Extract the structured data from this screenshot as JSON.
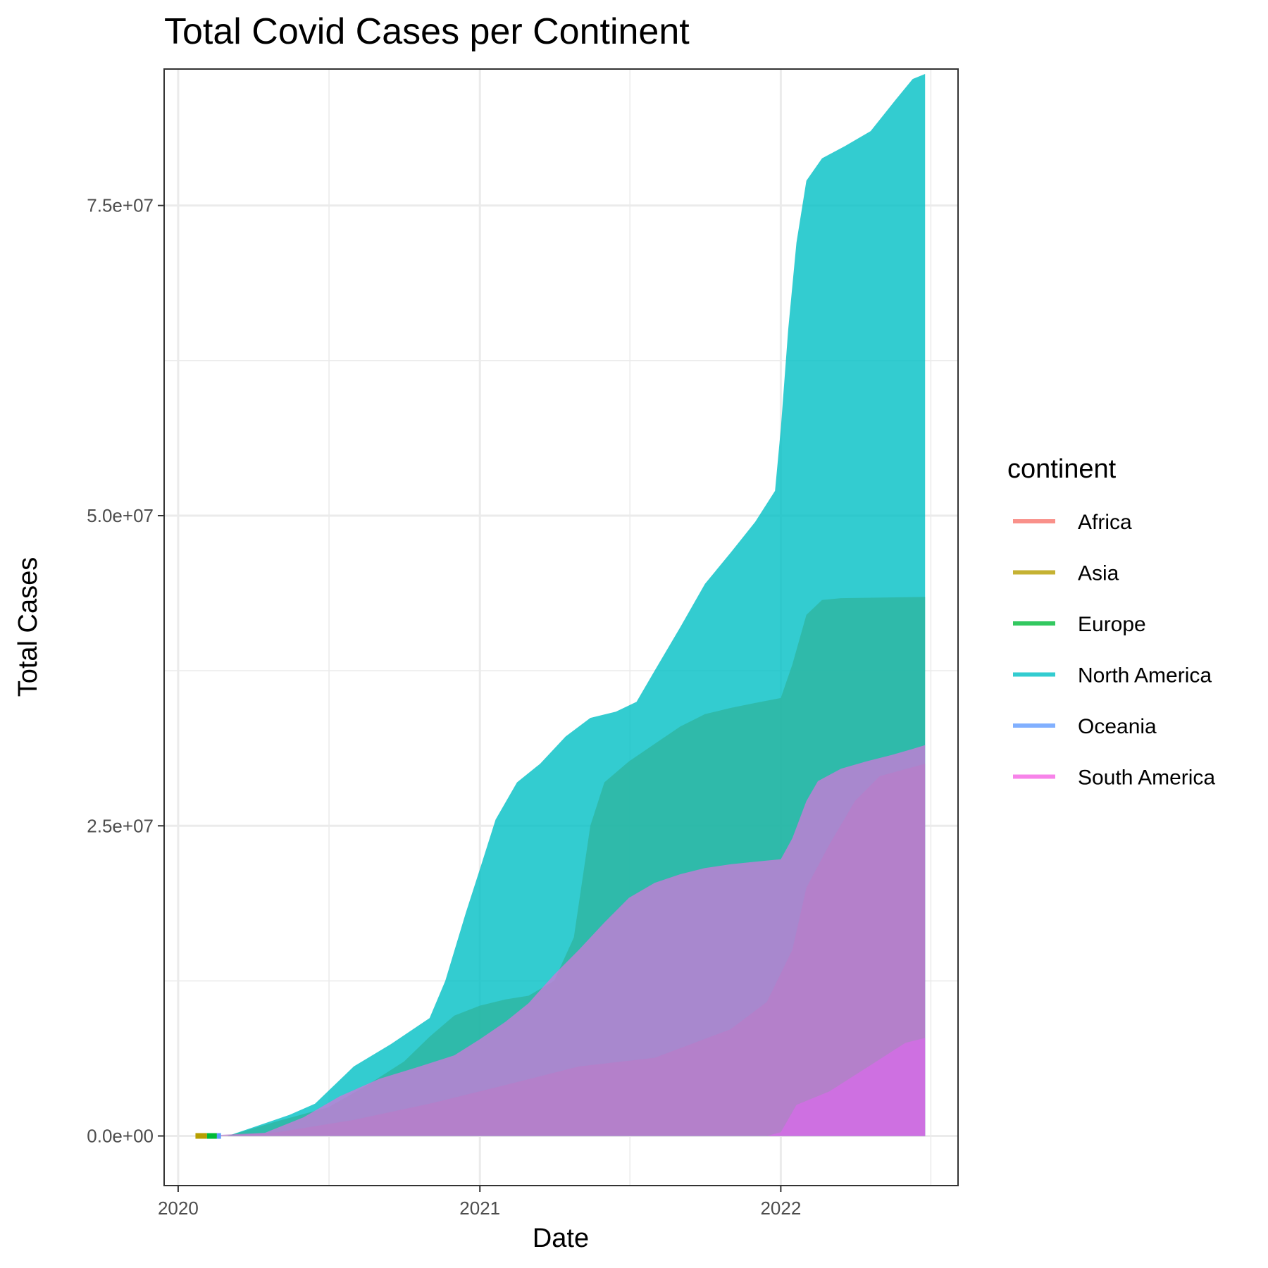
{
  "chart_data": {
    "type": "area",
    "title": "Total Covid Cases per Continent",
    "xlabel": "Date",
    "ylabel": "Total Cases",
    "xlim": [
      "2019-12-15",
      "2022-08-04"
    ],
    "ylim": [
      -4000000,
      86000000
    ],
    "x_ticks": [
      {
        "date": "2020-01-01",
        "label": "2020"
      },
      {
        "date": "2021-01-01",
        "label": "2021"
      },
      {
        "date": "2022-01-01",
        "label": "2022"
      }
    ],
    "x_minor_ticks": [
      "2020-07-02",
      "2021-07-02",
      "2022-07-02"
    ],
    "y_ticks": [
      {
        "value": 0,
        "label": "0.0e+00"
      },
      {
        "value": 25000000,
        "label": "2.5e+07"
      },
      {
        "value": 50000000,
        "label": "5.0e+07"
      },
      {
        "value": 75000000,
        "label": "7.5e+07"
      }
    ],
    "y_minor_ticks": [
      12500000,
      37500000,
      62500000
    ],
    "grid": true,
    "legend": {
      "title": "continent",
      "position": "right"
    },
    "series": [
      {
        "name": "North America",
        "color": "#00BFC4",
        "points": [
          [
            "2020-03-01",
            0
          ],
          [
            "2020-04-01",
            700000
          ],
          [
            "2020-05-15",
            1700000
          ],
          [
            "2020-06-15",
            2600000
          ],
          [
            "2020-08-01",
            5600000
          ],
          [
            "2020-09-15",
            7400000
          ],
          [
            "2020-11-01",
            9500000
          ],
          [
            "2020-11-20",
            12500000
          ],
          [
            "2020-12-15",
            18000000
          ],
          [
            "2021-01-01",
            21500000
          ],
          [
            "2021-01-20",
            25500000
          ],
          [
            "2021-02-15",
            28500000
          ],
          [
            "2021-03-15",
            30000000
          ],
          [
            "2021-04-15",
            32200000
          ],
          [
            "2021-05-15",
            33700000
          ],
          [
            "2021-06-15",
            34200000
          ],
          [
            "2021-07-10",
            35000000
          ],
          [
            "2021-08-01",
            37500000
          ],
          [
            "2021-09-01",
            41000000
          ],
          [
            "2021-10-01",
            44500000
          ],
          [
            "2021-11-01",
            47000000
          ],
          [
            "2021-12-01",
            49500000
          ],
          [
            "2021-12-25",
            52000000
          ],
          [
            "2022-01-01",
            57000000
          ],
          [
            "2022-01-10",
            65000000
          ],
          [
            "2022-01-20",
            72000000
          ],
          [
            "2022-02-01",
            77000000
          ],
          [
            "2022-02-20",
            78800000
          ],
          [
            "2022-03-20",
            79800000
          ],
          [
            "2022-04-20",
            81000000
          ],
          [
            "2022-05-20",
            83500000
          ],
          [
            "2022-06-10",
            85200000
          ],
          [
            "2022-06-25",
            85600000
          ]
        ]
      },
      {
        "name": "Europe",
        "color": "#2EB5A0",
        "points": [
          [
            "2020-03-01",
            0
          ],
          [
            "2020-05-01",
            1200000
          ],
          [
            "2020-07-01",
            2300000
          ],
          [
            "2020-08-15",
            4000000
          ],
          [
            "2020-10-01",
            6000000
          ],
          [
            "2020-11-01",
            8000000
          ],
          [
            "2020-12-01",
            9700000
          ],
          [
            "2021-01-01",
            10500000
          ],
          [
            "2021-02-01",
            11000000
          ],
          [
            "2021-03-01",
            11300000
          ],
          [
            "2021-04-01",
            12500000
          ],
          [
            "2021-04-25",
            16000000
          ],
          [
            "2021-05-15",
            25000000
          ],
          [
            "2021-06-01",
            28500000
          ],
          [
            "2021-07-01",
            30200000
          ],
          [
            "2021-08-01",
            31600000
          ],
          [
            "2021-09-01",
            33000000
          ],
          [
            "2021-10-01",
            34000000
          ],
          [
            "2021-11-01",
            34500000
          ],
          [
            "2021-12-01",
            34900000
          ],
          [
            "2022-01-01",
            35300000
          ],
          [
            "2022-01-15",
            38000000
          ],
          [
            "2022-02-01",
            42000000
          ],
          [
            "2022-02-20",
            43200000
          ],
          [
            "2022-03-15",
            43350000
          ],
          [
            "2022-06-25",
            43450000
          ]
        ]
      },
      {
        "name": "South America",
        "color": "#C77CD7",
        "points": [
          [
            "2020-03-01",
            0
          ],
          [
            "2020-04-15",
            250000
          ],
          [
            "2020-06-01",
            1500000
          ],
          [
            "2020-07-15",
            3200000
          ],
          [
            "2020-09-01",
            4600000
          ],
          [
            "2020-10-15",
            5500000
          ],
          [
            "2020-12-01",
            6500000
          ],
          [
            "2021-01-01",
            7800000
          ],
          [
            "2021-02-01",
            9200000
          ],
          [
            "2021-03-01",
            10700000
          ],
          [
            "2021-04-01",
            13000000
          ],
          [
            "2021-05-01",
            15000000
          ],
          [
            "2021-06-01",
            17200000
          ],
          [
            "2021-07-01",
            19200000
          ],
          [
            "2021-08-01",
            20400000
          ],
          [
            "2021-09-01",
            21100000
          ],
          [
            "2021-10-01",
            21600000
          ],
          [
            "2021-11-01",
            21900000
          ],
          [
            "2021-12-01",
            22100000
          ],
          [
            "2022-01-01",
            22300000
          ],
          [
            "2022-01-15",
            24000000
          ],
          [
            "2022-02-01",
            27000000
          ],
          [
            "2022-02-15",
            28600000
          ],
          [
            "2022-03-15",
            29600000
          ],
          [
            "2022-04-15",
            30200000
          ],
          [
            "2022-05-15",
            30700000
          ],
          [
            "2022-06-10",
            31200000
          ],
          [
            "2022-06-25",
            31500000
          ]
        ]
      },
      {
        "name": "Asia",
        "color": "#B67EC9",
        "points": [
          [
            "2020-01-22",
            0
          ],
          [
            "2020-05-01",
            300000
          ],
          [
            "2020-08-01",
            1300000
          ],
          [
            "2020-11-01",
            2600000
          ],
          [
            "2021-02-01",
            4100000
          ],
          [
            "2021-05-01",
            5600000
          ],
          [
            "2021-08-01",
            6300000
          ],
          [
            "2021-11-01",
            8600000
          ],
          [
            "2021-12-15",
            10800000
          ],
          [
            "2022-01-15",
            15000000
          ],
          [
            "2022-02-01",
            20000000
          ],
          [
            "2022-03-01",
            23500000
          ],
          [
            "2022-04-01",
            27000000
          ],
          [
            "2022-05-01",
            29000000
          ],
          [
            "2022-06-25",
            30000000
          ]
        ]
      },
      {
        "name": "Oceania",
        "color": "#D46CE6",
        "points": [
          [
            "2020-03-01",
            0
          ],
          [
            "2021-12-15",
            0
          ],
          [
            "2022-01-01",
            300000
          ],
          [
            "2022-01-20",
            2500000
          ],
          [
            "2022-03-01",
            3600000
          ],
          [
            "2022-04-15",
            5500000
          ],
          [
            "2022-06-01",
            7500000
          ],
          [
            "2022-06-25",
            7900000
          ]
        ]
      }
    ],
    "legend_entries": [
      {
        "name": "Africa",
        "color": "#F8766D"
      },
      {
        "name": "Asia",
        "color": "#B79F00"
      },
      {
        "name": "Europe",
        "color": "#00BA38"
      },
      {
        "name": "North America",
        "color": "#00BFC4"
      },
      {
        "name": "Oceania",
        "color": "#619CFF"
      },
      {
        "name": "South America",
        "color": "#F564E3"
      }
    ],
    "early_segments": [
      {
        "name": "Asia",
        "color": "#B79F00",
        "start": "2020-01-22",
        "end": "2020-02-05",
        "value": 0
      },
      {
        "name": "Europe",
        "color": "#00BA38",
        "start": "2020-02-05",
        "end": "2020-02-17",
        "value": 0
      },
      {
        "name": "Oceania",
        "color": "#619CFF",
        "start": "2020-02-17",
        "end": "2020-02-22",
        "value": 0
      }
    ]
  }
}
